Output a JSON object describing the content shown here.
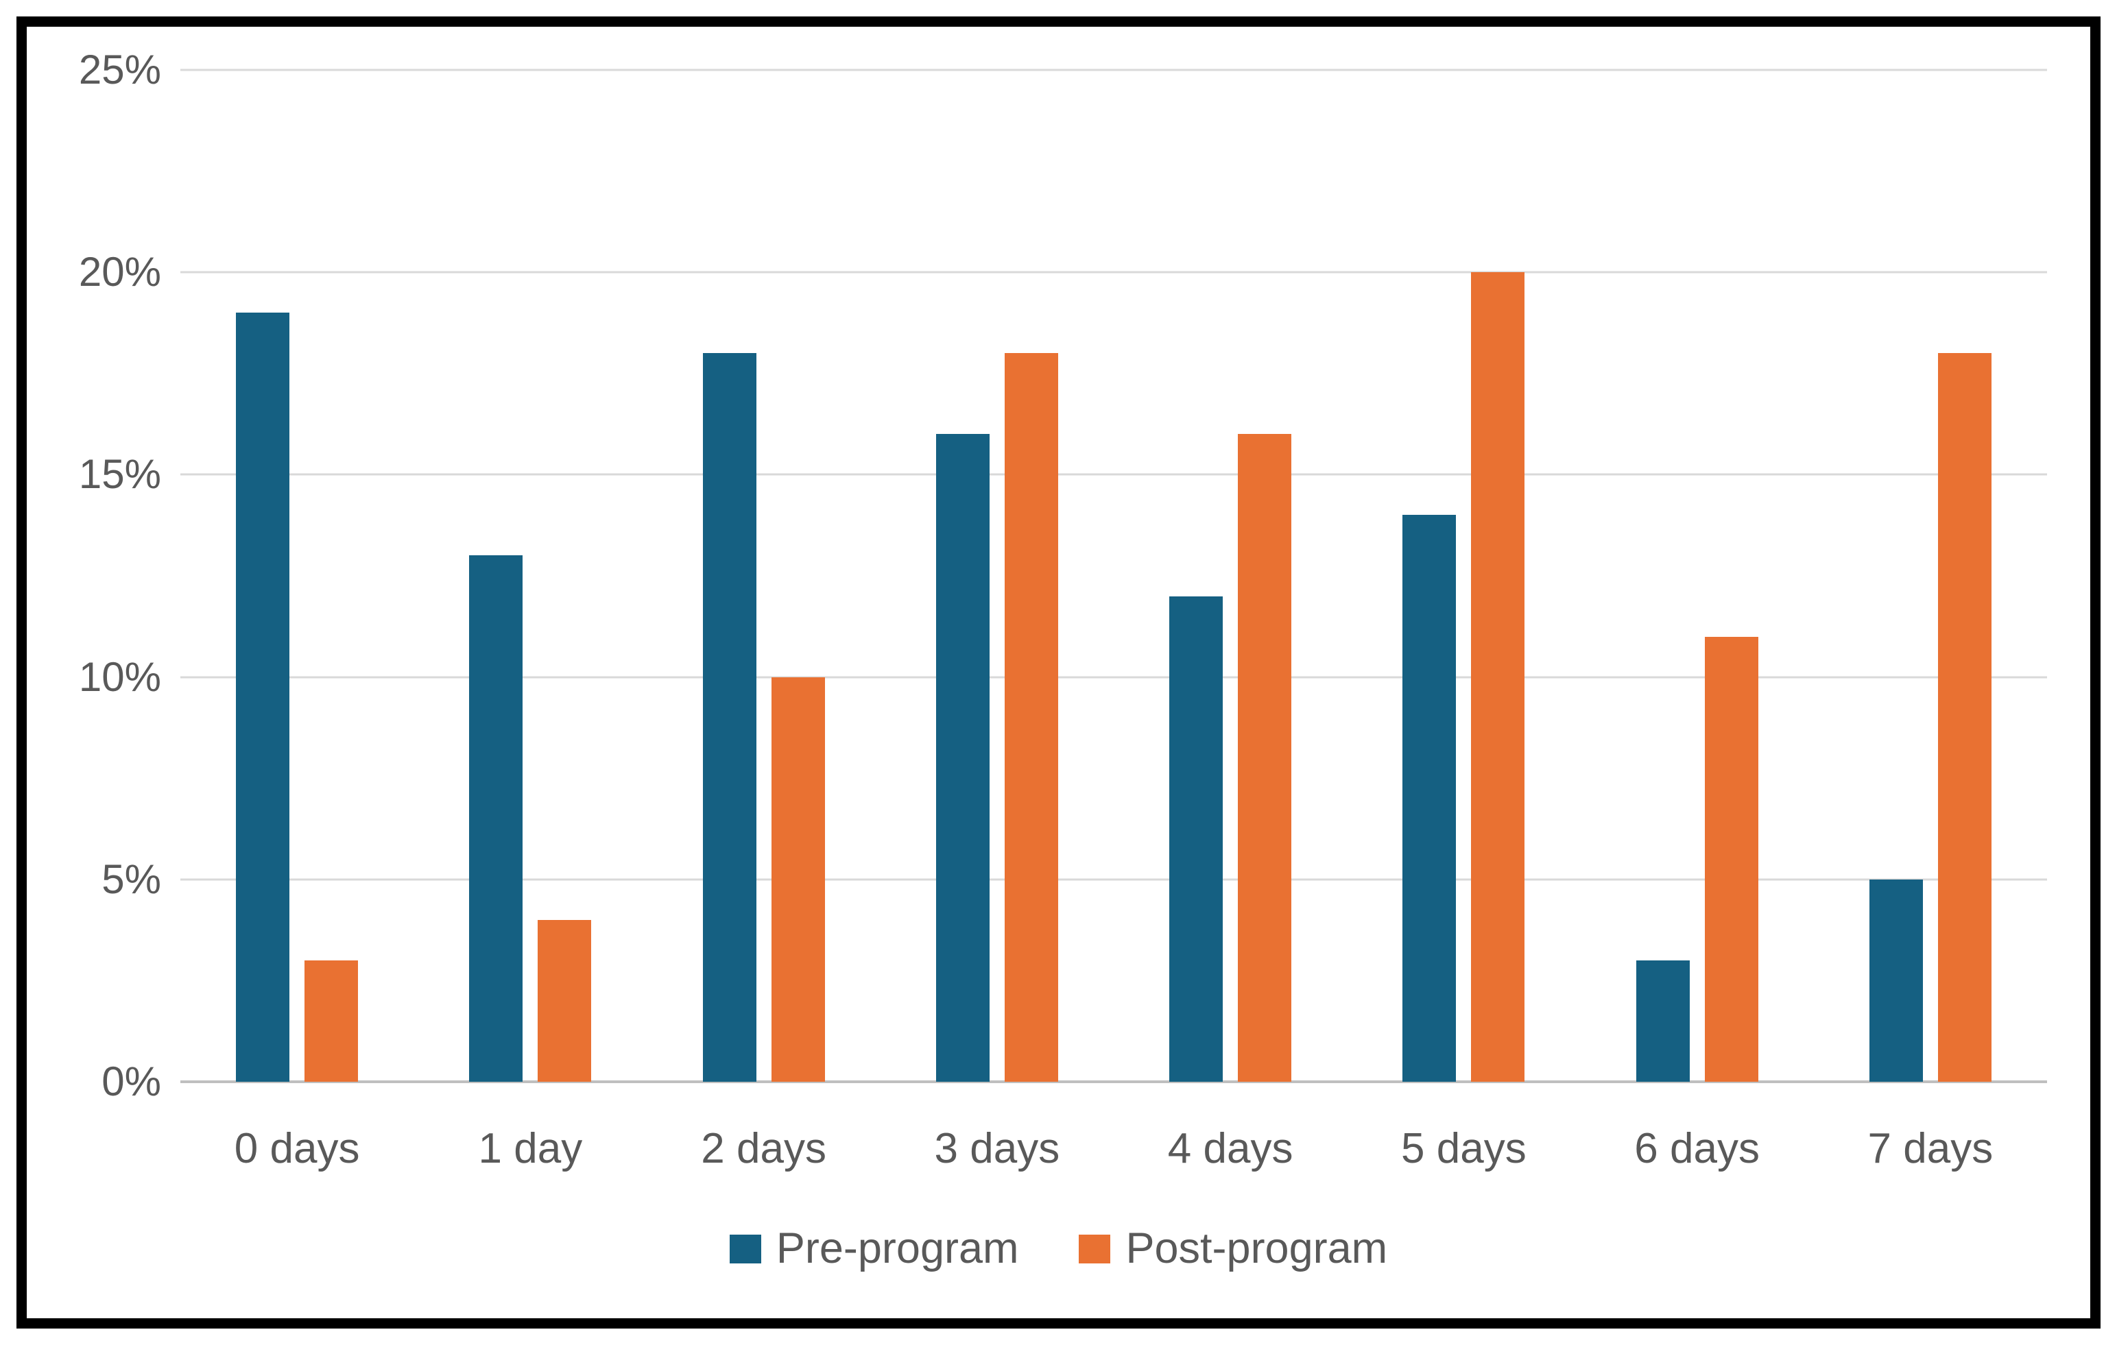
{
  "colors": {
    "pre_program": "#156082",
    "post_program": "#E97132",
    "gridline": "#d9d9d9",
    "axis_line": "#bfbfbf",
    "tick_text": "#595959",
    "frame": "#000000",
    "background": "#ffffff"
  },
  "chart_data": {
    "type": "bar",
    "title": "",
    "xlabel": "",
    "ylabel": "",
    "categories": [
      "0 days",
      "1 day",
      "2 days",
      "3 days",
      "4 days",
      "5 days",
      "6 days",
      "7 days"
    ],
    "series": [
      {
        "name": "Pre-program",
        "color": "#156082",
        "values": [
          19,
          13,
          18,
          16,
          12,
          14,
          3,
          5
        ]
      },
      {
        "name": "Post-program",
        "color": "#E97132",
        "values": [
          3,
          4,
          10,
          18,
          16,
          20,
          11,
          18
        ]
      }
    ],
    "ylim": [
      0,
      25
    ],
    "ytick_step": 5,
    "ytick_labels": [
      "0%",
      "5%",
      "10%",
      "15%",
      "20%",
      "25%"
    ],
    "grid": true,
    "legend_position": "bottom"
  }
}
